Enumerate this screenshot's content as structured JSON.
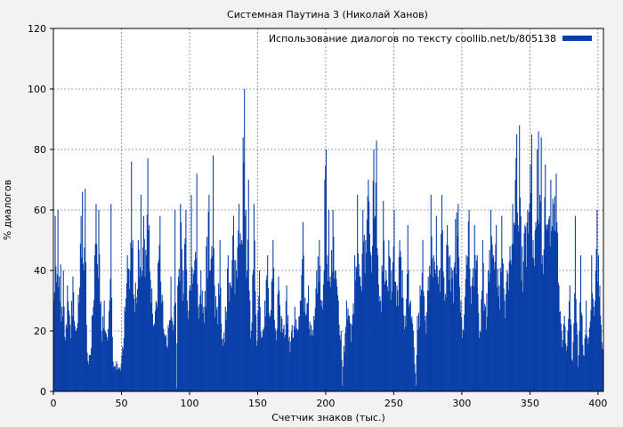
{
  "chart_data": {
    "type": "bar",
    "title": "Системная Паутина 3 (Николай Ханов)",
    "xlabel": "Счетчик знаков (тыс.)",
    "ylabel": "% диалогов",
    "xlim": [
      0,
      404
    ],
    "ylim": [
      0,
      120
    ],
    "x_ticks": [
      0,
      50,
      100,
      150,
      200,
      250,
      300,
      350,
      400
    ],
    "y_ticks": [
      0,
      20,
      40,
      60,
      80,
      100,
      120
    ],
    "grid": true,
    "legend_position": "top-right",
    "series": [
      {
        "name": "Использование диалогов по тексту coollib.net/b/805138",
        "color": "#0a3fa8",
        "bin_width": 0.5,
        "keypoints": [
          [
            0,
            30
          ],
          [
            1,
            58
          ],
          [
            2,
            36
          ],
          [
            3,
            60
          ],
          [
            4,
            38
          ],
          [
            5,
            42
          ],
          [
            6,
            28
          ],
          [
            7,
            40
          ],
          [
            8,
            18
          ],
          [
            10,
            35
          ],
          [
            12,
            22
          ],
          [
            14,
            38
          ],
          [
            16,
            20
          ],
          [
            18,
            32
          ],
          [
            20,
            58
          ],
          [
            21,
            66
          ],
          [
            22,
            40
          ],
          [
            23,
            67
          ],
          [
            24,
            22
          ],
          [
            25,
            10
          ],
          [
            26,
            12
          ],
          [
            28,
            25
          ],
          [
            30,
            45
          ],
          [
            31,
            62
          ],
          [
            32,
            42
          ],
          [
            33,
            60
          ],
          [
            35,
            20
          ],
          [
            37,
            30
          ],
          [
            39,
            18
          ],
          [
            41,
            30
          ],
          [
            42,
            62
          ],
          [
            43,
            18
          ],
          [
            44,
            8
          ],
          [
            46,
            10
          ],
          [
            48,
            8
          ],
          [
            50,
            12
          ],
          [
            52,
            28
          ],
          [
            54,
            45
          ],
          [
            56,
            40
          ],
          [
            57,
            76
          ],
          [
            58,
            50
          ],
          [
            60,
            36
          ],
          [
            62,
            50
          ],
          [
            64,
            65
          ],
          [
            65,
            40
          ],
          [
            66,
            58
          ],
          [
            68,
            45
          ],
          [
            69,
            77
          ],
          [
            70,
            55
          ],
          [
            72,
            34
          ],
          [
            75,
            30
          ],
          [
            78,
            58
          ],
          [
            80,
            30
          ],
          [
            82,
            18
          ],
          [
            84,
            22
          ],
          [
            86,
            38
          ],
          [
            88,
            22
          ],
          [
            89,
            60
          ],
          [
            90,
            1
          ],
          [
            91,
            35
          ],
          [
            93,
            62
          ],
          [
            95,
            40
          ],
          [
            97,
            60
          ],
          [
            98,
            30
          ],
          [
            100,
            35
          ],
          [
            101,
            65
          ],
          [
            103,
            40
          ],
          [
            105,
            72
          ],
          [
            106,
            28
          ],
          [
            108,
            40
          ],
          [
            110,
            28
          ],
          [
            112,
            48
          ],
          [
            114,
            65
          ],
          [
            115,
            40
          ],
          [
            117,
            78
          ],
          [
            118,
            35
          ],
          [
            120,
            28
          ],
          [
            122,
            50
          ],
          [
            124,
            15
          ],
          [
            126,
            28
          ],
          [
            128,
            45
          ],
          [
            130,
            35
          ],
          [
            132,
            58
          ],
          [
            134,
            40
          ],
          [
            136,
            62
          ],
          [
            138,
            50
          ],
          [
            139,
            84
          ],
          [
            140,
            100
          ],
          [
            141,
            60
          ],
          [
            142,
            40
          ],
          [
            143,
            70
          ],
          [
            144,
            30
          ],
          [
            145,
            20
          ],
          [
            147,
            62
          ],
          [
            149,
            15
          ],
          [
            151,
            40
          ],
          [
            153,
            18
          ],
          [
            155,
            30
          ],
          [
            157,
            45
          ],
          [
            159,
            25
          ],
          [
            161,
            50
          ],
          [
            163,
            20
          ],
          [
            165,
            38
          ],
          [
            167,
            25
          ],
          [
            169,
            22
          ],
          [
            171,
            35
          ],
          [
            173,
            18
          ],
          [
            175,
            22
          ],
          [
            177,
            28
          ],
          [
            179,
            20
          ],
          [
            181,
            30
          ],
          [
            183,
            56
          ],
          [
            185,
            25
          ],
          [
            187,
            35
          ],
          [
            189,
            22
          ],
          [
            191,
            25
          ],
          [
            193,
            40
          ],
          [
            195,
            50
          ],
          [
            197,
            30
          ],
          [
            199,
            70
          ],
          [
            200,
            80
          ],
          [
            201,
            45
          ],
          [
            202,
            60
          ],
          [
            203,
            38
          ],
          [
            205,
            60
          ],
          [
            207,
            40
          ],
          [
            209,
            30
          ],
          [
            211,
            20
          ],
          [
            212,
            2
          ],
          [
            213,
            15
          ],
          [
            215,
            30
          ],
          [
            217,
            25
          ],
          [
            219,
            22
          ],
          [
            221,
            45
          ],
          [
            223,
            65
          ],
          [
            225,
            38
          ],
          [
            227,
            60
          ],
          [
            229,
            50
          ],
          [
            231,
            70
          ],
          [
            233,
            45
          ],
          [
            235,
            80
          ],
          [
            236,
            58
          ],
          [
            237,
            83
          ],
          [
            238,
            45
          ],
          [
            240,
            30
          ],
          [
            242,
            63
          ],
          [
            244,
            40
          ],
          [
            246,
            50
          ],
          [
            248,
            40
          ],
          [
            250,
            60
          ],
          [
            252,
            35
          ],
          [
            254,
            50
          ],
          [
            256,
            40
          ],
          [
            258,
            25
          ],
          [
            260,
            55
          ],
          [
            262,
            30
          ],
          [
            264,
            20
          ],
          [
            266,
            2
          ],
          [
            267,
            25
          ],
          [
            269,
            35
          ],
          [
            271,
            50
          ],
          [
            273,
            25
          ],
          [
            275,
            38
          ],
          [
            277,
            65
          ],
          [
            279,
            45
          ],
          [
            281,
            58
          ],
          [
            283,
            40
          ],
          [
            285,
            65
          ],
          [
            287,
            30
          ],
          [
            289,
            55
          ],
          [
            291,
            45
          ],
          [
            293,
            40
          ],
          [
            295,
            57
          ],
          [
            297,
            62
          ],
          [
            299,
            30
          ],
          [
            301,
            20
          ],
          [
            303,
            45
          ],
          [
            305,
            60
          ],
          [
            307,
            35
          ],
          [
            309,
            55
          ],
          [
            311,
            45
          ],
          [
            313,
            20
          ],
          [
            315,
            50
          ],
          [
            317,
            28
          ],
          [
            319,
            40
          ],
          [
            321,
            60
          ],
          [
            323,
            45
          ],
          [
            325,
            55
          ],
          [
            327,
            35
          ],
          [
            329,
            58
          ],
          [
            331,
            30
          ],
          [
            333,
            40
          ],
          [
            335,
            48
          ],
          [
            337,
            62
          ],
          [
            339,
            70
          ],
          [
            340,
            85
          ],
          [
            341,
            55
          ],
          [
            342,
            88
          ],
          [
            343,
            58
          ],
          [
            344,
            48
          ],
          [
            346,
            55
          ],
          [
            348,
            60
          ],
          [
            350,
            75
          ],
          [
            351,
            85
          ],
          [
            352,
            50
          ],
          [
            354,
            56
          ],
          [
            355,
            80
          ],
          [
            356,
            86
          ],
          [
            357,
            65
          ],
          [
            358,
            84
          ],
          [
            359,
            45
          ],
          [
            361,
            75
          ],
          [
            363,
            55
          ],
          [
            365,
            70
          ],
          [
            367,
            62
          ],
          [
            369,
            72
          ],
          [
            371,
            35
          ],
          [
            373,
            20
          ],
          [
            375,
            25
          ],
          [
            377,
            15
          ],
          [
            379,
            35
          ],
          [
            381,
            10
          ],
          [
            383,
            58
          ],
          [
            385,
            8
          ],
          [
            387,
            45
          ],
          [
            389,
            12
          ],
          [
            391,
            30
          ],
          [
            393,
            18
          ],
          [
            395,
            45
          ],
          [
            397,
            25
          ],
          [
            399,
            60
          ],
          [
            400,
            45
          ],
          [
            401,
            35
          ],
          [
            402,
            22
          ],
          [
            403,
            14
          ]
        ]
      }
    ]
  }
}
